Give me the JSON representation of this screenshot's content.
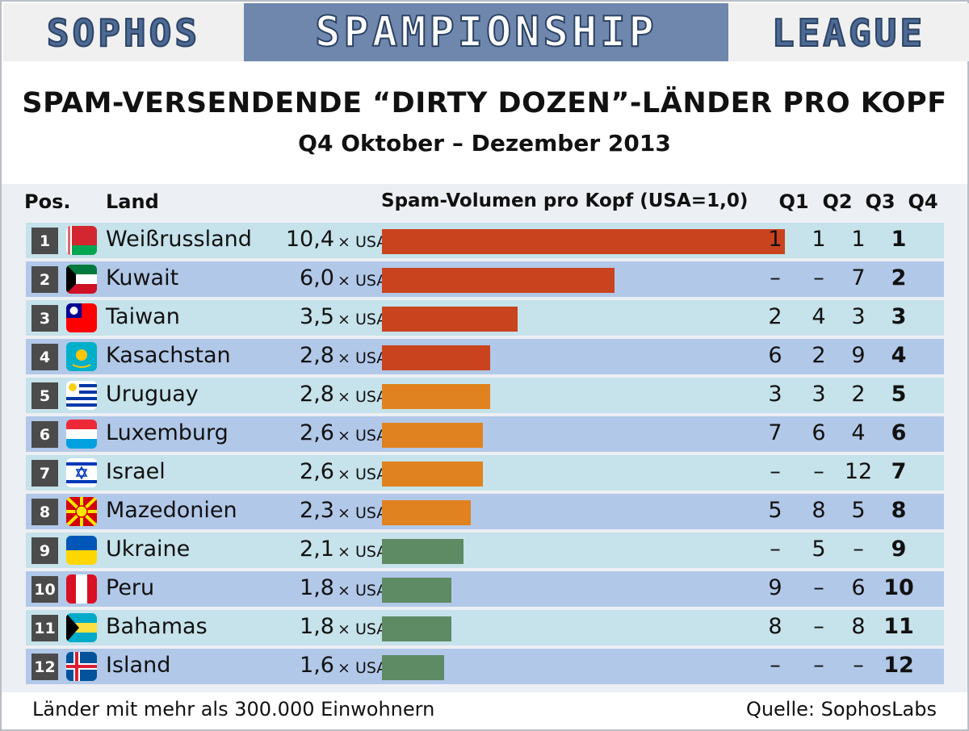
{
  "banner": {
    "left": "SOPHOS",
    "middle": "SPAMPIONSHIP",
    "right": "LEAGUE"
  },
  "title": "SPAM-VERSENDENDE “DIRTY DOZEN”-LÄNDER PRO KOPF",
  "subtitle": "Q4 Oktober – Dezember 2013",
  "headers": {
    "pos": "Pos.",
    "land": "Land",
    "volume": "Spam-Volumen pro Kopf  (USA=1,0)",
    "q1": "Q1",
    "q2": "Q2",
    "q3": "Q3",
    "q4": "Q4"
  },
  "times_label": "× USA",
  "footer": {
    "left": "Länder mit mehr als 300.000 Einwohnern",
    "right": "Quelle: SophosLabs"
  },
  "colors": {
    "red": "#c9431e",
    "orange": "#e0821f",
    "green": "#5e8b63"
  },
  "chart_data": {
    "type": "bar",
    "title": "SPAM-VERSENDENDE “DIRTY DOZEN”-LÄNDER PRO KOPF",
    "subtitle": "Q4 Oktober – Dezember 2013",
    "xlabel": "Spam-Volumen pro Kopf  (USA=1,0)",
    "xlim": [
      0,
      10.4
    ],
    "grid": false,
    "rows": [
      {
        "pos": "1",
        "country": "Weißrussland",
        "flag": "belarus",
        "value": 10.4,
        "label": "10,4",
        "q1": "1",
        "q2": "1",
        "q3": "1",
        "q4": "1",
        "color": "red"
      },
      {
        "pos": "2",
        "country": "Kuwait",
        "flag": "kuwait",
        "value": 6.0,
        "label": "6,0",
        "q1": "–",
        "q2": "–",
        "q3": "7",
        "q4": "2",
        "color": "red"
      },
      {
        "pos": "3",
        "country": "Taiwan",
        "flag": "taiwan",
        "value": 3.5,
        "label": "3,5",
        "q1": "2",
        "q2": "4",
        "q3": "3",
        "q4": "3",
        "color": "red"
      },
      {
        "pos": "4",
        "country": "Kasachstan",
        "flag": "kazakhstan",
        "value": 2.8,
        "label": "2,8",
        "q1": "6",
        "q2": "2",
        "q3": "9",
        "q4": "4",
        "color": "red"
      },
      {
        "pos": "5",
        "country": "Uruguay",
        "flag": "uruguay",
        "value": 2.8,
        "label": "2,8",
        "q1": "3",
        "q2": "3",
        "q3": "2",
        "q4": "5",
        "color": "orange"
      },
      {
        "pos": "6",
        "country": "Luxemburg",
        "flag": "luxembourg",
        "value": 2.6,
        "label": "2,6",
        "q1": "7",
        "q2": "6",
        "q3": "4",
        "q4": "6",
        "color": "orange"
      },
      {
        "pos": "7",
        "country": "Israel",
        "flag": "israel",
        "value": 2.6,
        "label": "2,6",
        "q1": "–",
        "q2": "–",
        "q3": "12",
        "q4": "7",
        "color": "orange"
      },
      {
        "pos": "8",
        "country": "Mazedonien",
        "flag": "macedonia",
        "value": 2.3,
        "label": "2,3",
        "q1": "5",
        "q2": "8",
        "q3": "5",
        "q4": "8",
        "color": "orange"
      },
      {
        "pos": "9",
        "country": "Ukraine",
        "flag": "ukraine",
        "value": 2.1,
        "label": "2,1",
        "q1": "–",
        "q2": "5",
        "q3": "–",
        "q4": "9",
        "color": "green"
      },
      {
        "pos": "10",
        "country": "Peru",
        "flag": "peru",
        "value": 1.8,
        "label": "1,8",
        "q1": "9",
        "q2": "–",
        "q3": "6",
        "q4": "10",
        "color": "green"
      },
      {
        "pos": "11",
        "country": "Bahamas",
        "flag": "bahamas",
        "value": 1.8,
        "label": "1,8",
        "q1": "8",
        "q2": "–",
        "q3": "8",
        "q4": "11",
        "color": "green"
      },
      {
        "pos": "12",
        "country": "Island",
        "flag": "iceland",
        "value": 1.6,
        "label": "1,6",
        "q1": "–",
        "q2": "–",
        "q3": "–",
        "q4": "12",
        "color": "green"
      }
    ]
  }
}
